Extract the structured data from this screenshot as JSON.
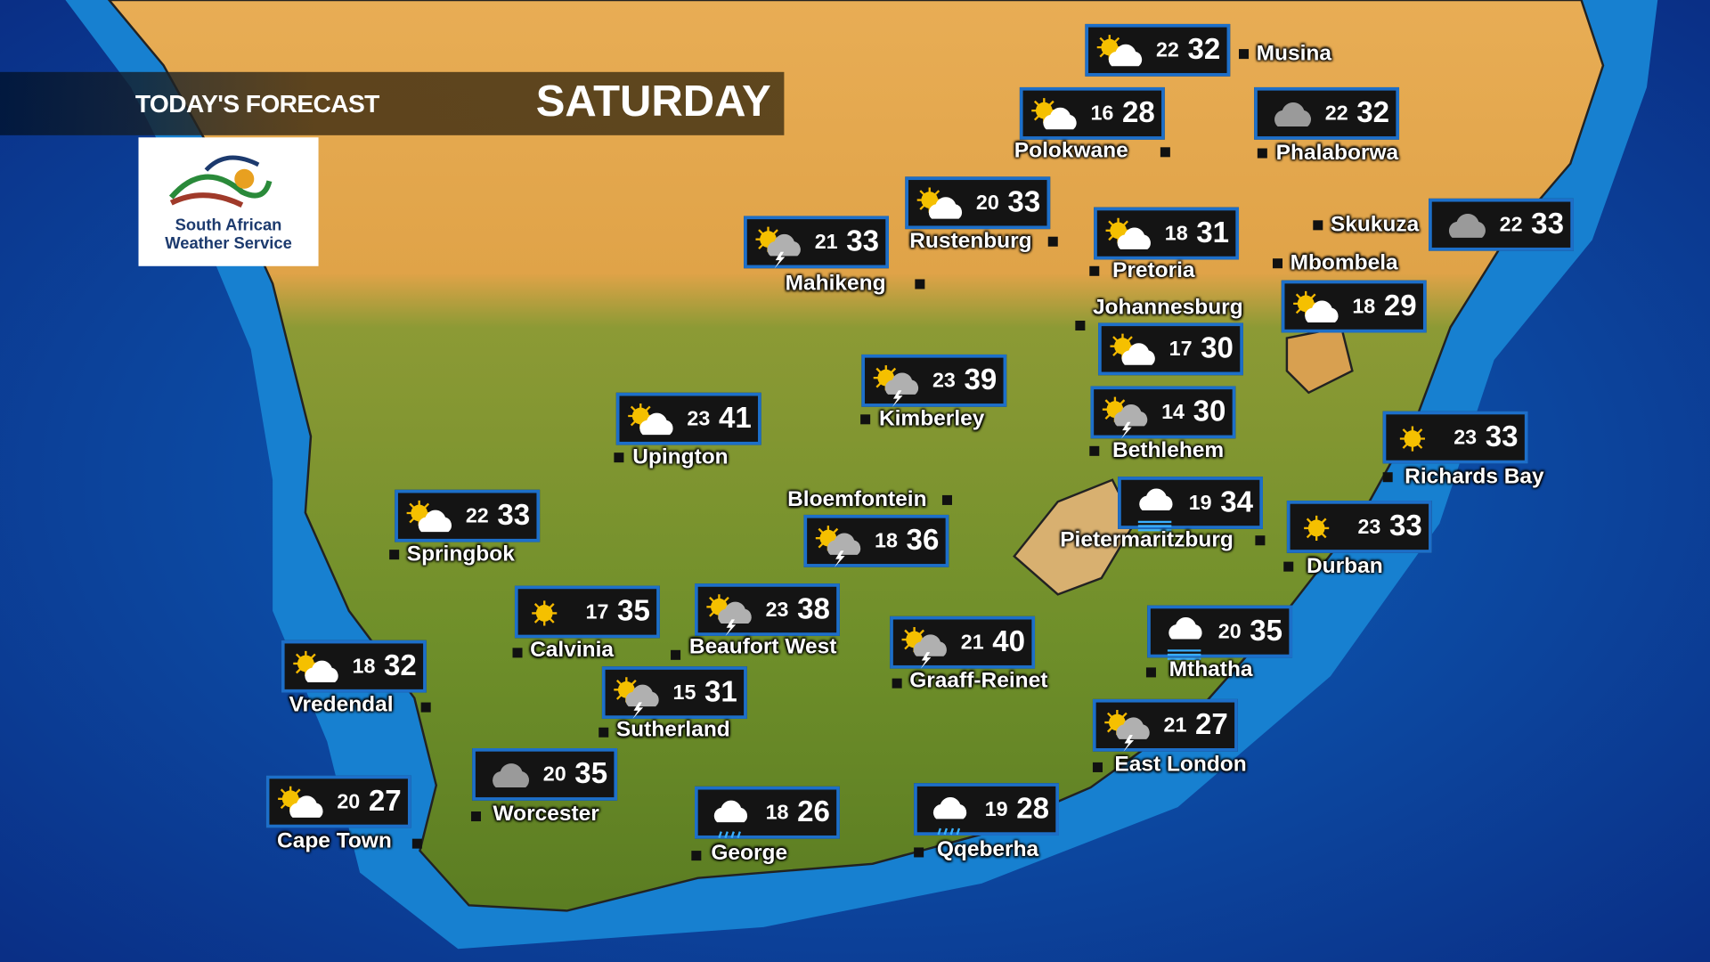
{
  "header": {
    "title": "TODAY'S FORECAST",
    "day": "SATURDAY"
  },
  "logo": {
    "text_line1": "South African",
    "text_line2": "Weather Service"
  },
  "colors": {
    "box_border": "#1d6fc9",
    "box_bg": "#141414",
    "ocean": "#0a3f9a",
    "land_green": "#6f8f2a",
    "land_tan": "#e3a84e"
  },
  "cities": [
    {
      "name": "Musina",
      "icon": "partly-cloudy",
      "low": "22",
      "high": "32"
    },
    {
      "name": "Polokwane",
      "icon": "partly-cloudy",
      "low": "16",
      "high": "28"
    },
    {
      "name": "Phalaborwa",
      "icon": "cloudy",
      "low": "22",
      "high": "32"
    },
    {
      "name": "Rustenburg",
      "icon": "partly-cloudy",
      "low": "20",
      "high": "33"
    },
    {
      "name": "Mahikeng",
      "icon": "thunderstorm-sun",
      "low": "21",
      "high": "33"
    },
    {
      "name": "Pretoria",
      "icon": "partly-cloudy",
      "low": "18",
      "high": "31"
    },
    {
      "name": "Skukuza",
      "icon": "cloudy",
      "low": "22",
      "high": "33"
    },
    {
      "name": "Mbombela",
      "icon": "partly-cloudy",
      "low": "18",
      "high": "29"
    },
    {
      "name": "Johannesburg",
      "icon": "partly-cloudy",
      "low": "17",
      "high": "30"
    },
    {
      "name": "Kimberley",
      "icon": "thunderstorm-sun",
      "low": "23",
      "high": "39"
    },
    {
      "name": "Upington",
      "icon": "partly-cloudy",
      "low": "23",
      "high": "41"
    },
    {
      "name": "Bethlehem",
      "icon": "thunderstorm-sun",
      "low": "14",
      "high": "30"
    },
    {
      "name": "Richards Bay",
      "icon": "sunny",
      "low": "23",
      "high": "33"
    },
    {
      "name": "Springbok",
      "icon": "partly-cloudy",
      "low": "22",
      "high": "33"
    },
    {
      "name": "Bloemfontein",
      "icon": "thunderstorm-sun",
      "low": "18",
      "high": "36"
    },
    {
      "name": "Pietermaritzburg",
      "icon": "fog",
      "low": "19",
      "high": "34"
    },
    {
      "name": "Durban",
      "icon": "sunny",
      "low": "23",
      "high": "33"
    },
    {
      "name": "Calvinia",
      "icon": "sunny",
      "low": "17",
      "high": "35"
    },
    {
      "name": "Beaufort West",
      "icon": "thunderstorm-sun",
      "low": "23",
      "high": "38"
    },
    {
      "name": "Vredendal",
      "icon": "partly-cloudy",
      "low": "18",
      "high": "32"
    },
    {
      "name": "Graaff-Reinet",
      "icon": "thunderstorm-sun",
      "low": "21",
      "high": "40"
    },
    {
      "name": "Mthatha",
      "icon": "fog",
      "low": "20",
      "high": "35"
    },
    {
      "name": "Sutherland",
      "icon": "thunderstorm-sun",
      "low": "15",
      "high": "31"
    },
    {
      "name": "East London",
      "icon": "thunderstorm-sun",
      "low": "21",
      "high": "27"
    },
    {
      "name": "Worcester",
      "icon": "cloudy",
      "low": "20",
      "high": "35"
    },
    {
      "name": "Cape Town",
      "icon": "partly-cloudy",
      "low": "20",
      "high": "27"
    },
    {
      "name": "George",
      "icon": "rain",
      "low": "18",
      "high": "26"
    },
    {
      "name": "Qqeberha",
      "icon": "rain",
      "low": "19",
      "high": "28"
    }
  ]
}
